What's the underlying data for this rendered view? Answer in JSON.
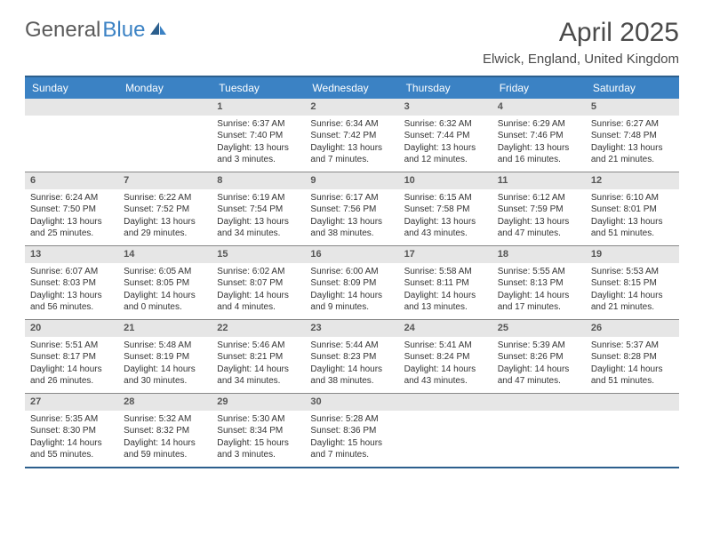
{
  "logo": {
    "part1": "General",
    "part2": "Blue"
  },
  "title": "April 2025",
  "location": "Elwick, England, United Kingdom",
  "colors": {
    "header_bg": "#3b82c4",
    "border": "#2c5f8d",
    "daybar": "#e6e6e6",
    "text": "#333333"
  },
  "day_headers": [
    "Sunday",
    "Monday",
    "Tuesday",
    "Wednesday",
    "Thursday",
    "Friday",
    "Saturday"
  ],
  "weeks": [
    [
      {
        "n": "",
        "lines": []
      },
      {
        "n": "",
        "lines": []
      },
      {
        "n": "1",
        "lines": [
          "Sunrise: 6:37 AM",
          "Sunset: 7:40 PM",
          "Daylight: 13 hours",
          "and 3 minutes."
        ]
      },
      {
        "n": "2",
        "lines": [
          "Sunrise: 6:34 AM",
          "Sunset: 7:42 PM",
          "Daylight: 13 hours",
          "and 7 minutes."
        ]
      },
      {
        "n": "3",
        "lines": [
          "Sunrise: 6:32 AM",
          "Sunset: 7:44 PM",
          "Daylight: 13 hours",
          "and 12 minutes."
        ]
      },
      {
        "n": "4",
        "lines": [
          "Sunrise: 6:29 AM",
          "Sunset: 7:46 PM",
          "Daylight: 13 hours",
          "and 16 minutes."
        ]
      },
      {
        "n": "5",
        "lines": [
          "Sunrise: 6:27 AM",
          "Sunset: 7:48 PM",
          "Daylight: 13 hours",
          "and 21 minutes."
        ]
      }
    ],
    [
      {
        "n": "6",
        "lines": [
          "Sunrise: 6:24 AM",
          "Sunset: 7:50 PM",
          "Daylight: 13 hours",
          "and 25 minutes."
        ]
      },
      {
        "n": "7",
        "lines": [
          "Sunrise: 6:22 AM",
          "Sunset: 7:52 PM",
          "Daylight: 13 hours",
          "and 29 minutes."
        ]
      },
      {
        "n": "8",
        "lines": [
          "Sunrise: 6:19 AM",
          "Sunset: 7:54 PM",
          "Daylight: 13 hours",
          "and 34 minutes."
        ]
      },
      {
        "n": "9",
        "lines": [
          "Sunrise: 6:17 AM",
          "Sunset: 7:56 PM",
          "Daylight: 13 hours",
          "and 38 minutes."
        ]
      },
      {
        "n": "10",
        "lines": [
          "Sunrise: 6:15 AM",
          "Sunset: 7:58 PM",
          "Daylight: 13 hours",
          "and 43 minutes."
        ]
      },
      {
        "n": "11",
        "lines": [
          "Sunrise: 6:12 AM",
          "Sunset: 7:59 PM",
          "Daylight: 13 hours",
          "and 47 minutes."
        ]
      },
      {
        "n": "12",
        "lines": [
          "Sunrise: 6:10 AM",
          "Sunset: 8:01 PM",
          "Daylight: 13 hours",
          "and 51 minutes."
        ]
      }
    ],
    [
      {
        "n": "13",
        "lines": [
          "Sunrise: 6:07 AM",
          "Sunset: 8:03 PM",
          "Daylight: 13 hours",
          "and 56 minutes."
        ]
      },
      {
        "n": "14",
        "lines": [
          "Sunrise: 6:05 AM",
          "Sunset: 8:05 PM",
          "Daylight: 14 hours",
          "and 0 minutes."
        ]
      },
      {
        "n": "15",
        "lines": [
          "Sunrise: 6:02 AM",
          "Sunset: 8:07 PM",
          "Daylight: 14 hours",
          "and 4 minutes."
        ]
      },
      {
        "n": "16",
        "lines": [
          "Sunrise: 6:00 AM",
          "Sunset: 8:09 PM",
          "Daylight: 14 hours",
          "and 9 minutes."
        ]
      },
      {
        "n": "17",
        "lines": [
          "Sunrise: 5:58 AM",
          "Sunset: 8:11 PM",
          "Daylight: 14 hours",
          "and 13 minutes."
        ]
      },
      {
        "n": "18",
        "lines": [
          "Sunrise: 5:55 AM",
          "Sunset: 8:13 PM",
          "Daylight: 14 hours",
          "and 17 minutes."
        ]
      },
      {
        "n": "19",
        "lines": [
          "Sunrise: 5:53 AM",
          "Sunset: 8:15 PM",
          "Daylight: 14 hours",
          "and 21 minutes."
        ]
      }
    ],
    [
      {
        "n": "20",
        "lines": [
          "Sunrise: 5:51 AM",
          "Sunset: 8:17 PM",
          "Daylight: 14 hours",
          "and 26 minutes."
        ]
      },
      {
        "n": "21",
        "lines": [
          "Sunrise: 5:48 AM",
          "Sunset: 8:19 PM",
          "Daylight: 14 hours",
          "and 30 minutes."
        ]
      },
      {
        "n": "22",
        "lines": [
          "Sunrise: 5:46 AM",
          "Sunset: 8:21 PM",
          "Daylight: 14 hours",
          "and 34 minutes."
        ]
      },
      {
        "n": "23",
        "lines": [
          "Sunrise: 5:44 AM",
          "Sunset: 8:23 PM",
          "Daylight: 14 hours",
          "and 38 minutes."
        ]
      },
      {
        "n": "24",
        "lines": [
          "Sunrise: 5:41 AM",
          "Sunset: 8:24 PM",
          "Daylight: 14 hours",
          "and 43 minutes."
        ]
      },
      {
        "n": "25",
        "lines": [
          "Sunrise: 5:39 AM",
          "Sunset: 8:26 PM",
          "Daylight: 14 hours",
          "and 47 minutes."
        ]
      },
      {
        "n": "26",
        "lines": [
          "Sunrise: 5:37 AM",
          "Sunset: 8:28 PM",
          "Daylight: 14 hours",
          "and 51 minutes."
        ]
      }
    ],
    [
      {
        "n": "27",
        "lines": [
          "Sunrise: 5:35 AM",
          "Sunset: 8:30 PM",
          "Daylight: 14 hours",
          "and 55 minutes."
        ]
      },
      {
        "n": "28",
        "lines": [
          "Sunrise: 5:32 AM",
          "Sunset: 8:32 PM",
          "Daylight: 14 hours",
          "and 59 minutes."
        ]
      },
      {
        "n": "29",
        "lines": [
          "Sunrise: 5:30 AM",
          "Sunset: 8:34 PM",
          "Daylight: 15 hours",
          "and 3 minutes."
        ]
      },
      {
        "n": "30",
        "lines": [
          "Sunrise: 5:28 AM",
          "Sunset: 8:36 PM",
          "Daylight: 15 hours",
          "and 7 minutes."
        ]
      },
      {
        "n": "",
        "lines": []
      },
      {
        "n": "",
        "lines": []
      },
      {
        "n": "",
        "lines": []
      }
    ]
  ]
}
